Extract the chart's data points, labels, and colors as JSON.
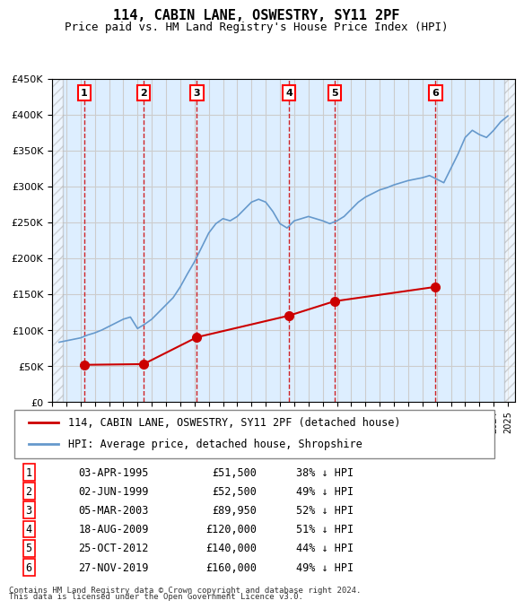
{
  "title": "114, CABIN LANE, OSWESTRY, SY11 2PF",
  "subtitle": "Price paid vs. HM Land Registry's House Price Index (HPI)",
  "ylabel_ticks": [
    "£0",
    "£50K",
    "£100K",
    "£150K",
    "£200K",
    "£250K",
    "£300K",
    "£350K",
    "£400K",
    "£450K"
  ],
  "ylabel_values": [
    0,
    50000,
    100000,
    150000,
    200000,
    250000,
    300000,
    350000,
    400000,
    450000
  ],
  "ylim": [
    0,
    450000
  ],
  "xlim_start": 1993.0,
  "xlim_end": 2025.5,
  "transactions": [
    {
      "num": 1,
      "date": "03-APR-1995",
      "date_num": 1995.25,
      "price": 51500,
      "pct": "38% ↓ HPI"
    },
    {
      "num": 2,
      "date": "02-JUN-1999",
      "date_num": 1999.42,
      "price": 52500,
      "pct": "49% ↓ HPI"
    },
    {
      "num": 3,
      "date": "05-MAR-2003",
      "date_num": 2003.17,
      "price": 89950,
      "pct": "52% ↓ HPI"
    },
    {
      "num": 4,
      "date": "18-AUG-2009",
      "date_num": 2009.63,
      "price": 120000,
      "pct": "51% ↓ HPI"
    },
    {
      "num": 5,
      "date": "25-OCT-2012",
      "date_num": 2012.82,
      "price": 140000,
      "pct": "44% ↓ HPI"
    },
    {
      "num": 6,
      "date": "27-NOV-2019",
      "date_num": 2019.91,
      "price": 160000,
      "pct": "49% ↓ HPI"
    }
  ],
  "hpi_line_color": "#6699cc",
  "price_line_color": "#cc0000",
  "transaction_marker_color": "#cc0000",
  "vline_color": "#cc0000",
  "grid_color": "#cccccc",
  "bg_color": "#ddeeff",
  "hatch_color": "#bbbbcc",
  "legend_line1": "114, CABIN LANE, OSWESTRY, SY11 2PF (detached house)",
  "legend_line2": "HPI: Average price, detached house, Shropshire",
  "footer1": "Contains HM Land Registry data © Crown copyright and database right 2024.",
  "footer2": "This data is licensed under the Open Government Licence v3.0.",
  "hpi_data_x": [
    1993.5,
    1994.0,
    1994.5,
    1995.0,
    1995.25,
    1995.5,
    1996.0,
    1996.5,
    1997.0,
    1997.5,
    1998.0,
    1998.5,
    1999.0,
    1999.5,
    2000.0,
    2000.5,
    2001.0,
    2001.5,
    2002.0,
    2002.5,
    2003.0,
    2003.5,
    2004.0,
    2004.5,
    2005.0,
    2005.5,
    2006.0,
    2006.5,
    2007.0,
    2007.5,
    2008.0,
    2008.5,
    2009.0,
    2009.5,
    2010.0,
    2010.5,
    2011.0,
    2011.5,
    2012.0,
    2012.5,
    2013.0,
    2013.5,
    2014.0,
    2014.5,
    2015.0,
    2015.5,
    2016.0,
    2016.5,
    2017.0,
    2017.5,
    2018.0,
    2018.5,
    2019.0,
    2019.5,
    2020.0,
    2020.5,
    2021.0,
    2021.5,
    2022.0,
    2022.5,
    2023.0,
    2023.5,
    2024.0,
    2024.5,
    2025.0
  ],
  "hpi_data_y": [
    83000,
    85000,
    87000,
    89000,
    91000,
    93000,
    96000,
    100000,
    105000,
    110000,
    115000,
    118000,
    102000,
    108000,
    115000,
    125000,
    135000,
    145000,
    160000,
    178000,
    195000,
    215000,
    235000,
    248000,
    255000,
    252000,
    258000,
    268000,
    278000,
    282000,
    278000,
    265000,
    248000,
    242000,
    252000,
    255000,
    258000,
    255000,
    252000,
    248000,
    252000,
    258000,
    268000,
    278000,
    285000,
    290000,
    295000,
    298000,
    302000,
    305000,
    308000,
    310000,
    312000,
    315000,
    310000,
    305000,
    325000,
    345000,
    368000,
    378000,
    372000,
    368000,
    378000,
    390000,
    398000
  ],
  "price_data_x": [
    1995.25,
    1999.42,
    2003.17,
    2009.63,
    2012.82,
    2019.91
  ],
  "price_data_y": [
    51500,
    52500,
    89950,
    120000,
    140000,
    160000
  ]
}
